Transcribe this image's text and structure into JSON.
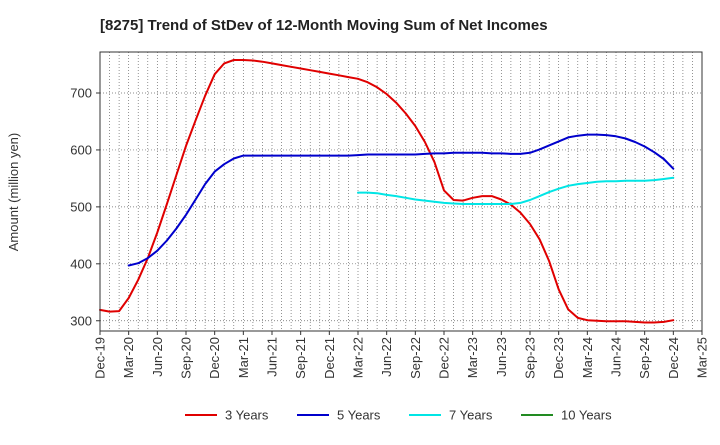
{
  "chart_data": {
    "type": "line",
    "title": "[8275]  Trend of StDev of 12-Month Moving Sum of Net Incomes",
    "ylabel": "Amount (million yen)",
    "xlabel": "",
    "x_tick_labels": [
      "Dec-19",
      "Mar-20",
      "Jun-20",
      "Sep-20",
      "Dec-20",
      "Mar-21",
      "Jun-21",
      "Sep-21",
      "Dec-21",
      "Mar-22",
      "Jun-22",
      "Sep-22",
      "Dec-22",
      "Mar-23",
      "Jun-23",
      "Sep-23",
      "Dec-23",
      "Mar-24",
      "Jun-24",
      "Sep-24",
      "Dec-24",
      "Mar-25"
    ],
    "y_ticks": [
      300,
      400,
      500,
      600,
      700
    ],
    "ylim": [
      282,
      772
    ],
    "grid": true,
    "legend_position": "bottom",
    "series": [
      {
        "name": "3 Years",
        "color": "#e00000",
        "x": [
          "Dec-19",
          "Jan-20",
          "Feb-20",
          "Mar-20",
          "Apr-20",
          "May-20",
          "Jun-20",
          "Jul-20",
          "Aug-20",
          "Sep-20",
          "Oct-20",
          "Nov-20",
          "Dec-20",
          "Jan-21",
          "Feb-21",
          "Mar-21",
          "Apr-21",
          "May-21",
          "Jun-21",
          "Jul-21",
          "Aug-21",
          "Sep-21",
          "Oct-21",
          "Nov-21",
          "Dec-21",
          "Jan-22",
          "Feb-22",
          "Mar-22",
          "Apr-22",
          "May-22",
          "Jun-22",
          "Jul-22",
          "Aug-22",
          "Sep-22",
          "Oct-22",
          "Nov-22",
          "Dec-22",
          "Jan-23",
          "Feb-23",
          "Mar-23",
          "Apr-23",
          "May-23",
          "Jun-23",
          "Jul-23",
          "Aug-23",
          "Sep-23",
          "Oct-23",
          "Nov-23",
          "Dec-23",
          "Jan-24",
          "Feb-24",
          "Mar-24",
          "Apr-24",
          "May-24",
          "Jun-24",
          "Jul-24",
          "Aug-24",
          "Sep-24",
          "Oct-24",
          "Nov-24",
          "Dec-24"
        ],
        "values": [
          319,
          316,
          317,
          340,
          372,
          410,
          455,
          505,
          556,
          607,
          652,
          695,
          733,
          752,
          758,
          758,
          757,
          755,
          752,
          749,
          746,
          743,
          740,
          737,
          734,
          731,
          728,
          725,
          719,
          710,
          698,
          683,
          664,
          642,
          614,
          579,
          529,
          512,
          511,
          516,
          519,
          519,
          513,
          504,
          490,
          470,
          443,
          405,
          355,
          320,
          305,
          301,
          300,
          299,
          299,
          299,
          298,
          297,
          297,
          298,
          301
        ]
      },
      {
        "name": "5 Years",
        "color": "#0000cc",
        "x": [
          "Mar-20",
          "Apr-20",
          "May-20",
          "Jun-20",
          "Jul-20",
          "Aug-20",
          "Sep-20",
          "Oct-20",
          "Nov-20",
          "Dec-20",
          "Jan-21",
          "Feb-21",
          "Mar-21",
          "Apr-21",
          "May-21",
          "Jun-21",
          "Jul-21",
          "Aug-21",
          "Sep-21",
          "Oct-21",
          "Nov-21",
          "Dec-21",
          "Jan-22",
          "Feb-22",
          "Mar-22",
          "Apr-22",
          "May-22",
          "Jun-22",
          "Jul-22",
          "Aug-22",
          "Sep-22",
          "Oct-22",
          "Nov-22",
          "Dec-22",
          "Jan-23",
          "Feb-23",
          "Mar-23",
          "Apr-23",
          "May-23",
          "Jun-23",
          "Jul-23",
          "Aug-23",
          "Sep-23",
          "Oct-23",
          "Nov-23",
          "Dec-23",
          "Jan-24",
          "Feb-24",
          "Mar-24",
          "Apr-24",
          "May-24",
          "Jun-24",
          "Jul-24",
          "Aug-24",
          "Sep-24",
          "Oct-24",
          "Nov-24",
          "Dec-24"
        ],
        "values": [
          397,
          401,
          410,
          423,
          441,
          462,
          486,
          513,
          540,
          562,
          575,
          585,
          590,
          590,
          590,
          590,
          590,
          590,
          590,
          590,
          590,
          590,
          590,
          590,
          591,
          592,
          592,
          592,
          592,
          592,
          592,
          593,
          594,
          594,
          595,
          595,
          595,
          595,
          594,
          594,
          593,
          593,
          595,
          601,
          608,
          615,
          622,
          625,
          627,
          627,
          626,
          624,
          620,
          614,
          606,
          596,
          584,
          567
        ]
      },
      {
        "name": "7 Years",
        "color": "#00e5e5",
        "x": [
          "Mar-22",
          "Apr-22",
          "May-22",
          "Jun-22",
          "Jul-22",
          "Aug-22",
          "Sep-22",
          "Oct-22",
          "Nov-22",
          "Dec-22",
          "Jan-23",
          "Feb-23",
          "Mar-23",
          "Apr-23",
          "May-23",
          "Jun-23",
          "Jul-23",
          "Aug-23",
          "Sep-23",
          "Oct-23",
          "Nov-23",
          "Dec-23",
          "Jan-24",
          "Feb-24",
          "Mar-24",
          "Apr-24",
          "May-24",
          "Jun-24",
          "Jul-24",
          "Aug-24",
          "Sep-24",
          "Oct-24",
          "Nov-24",
          "Dec-24"
        ],
        "values": [
          525,
          525,
          524,
          521,
          519,
          516,
          513,
          511,
          509,
          507,
          506,
          505,
          505,
          505,
          505,
          505,
          505,
          507,
          512,
          519,
          526,
          532,
          537,
          540,
          542,
          544,
          545,
          545,
          546,
          546,
          546,
          547,
          549,
          551
        ]
      },
      {
        "name": "10 Years",
        "color": "#228b22",
        "x": [],
        "values": []
      }
    ]
  }
}
